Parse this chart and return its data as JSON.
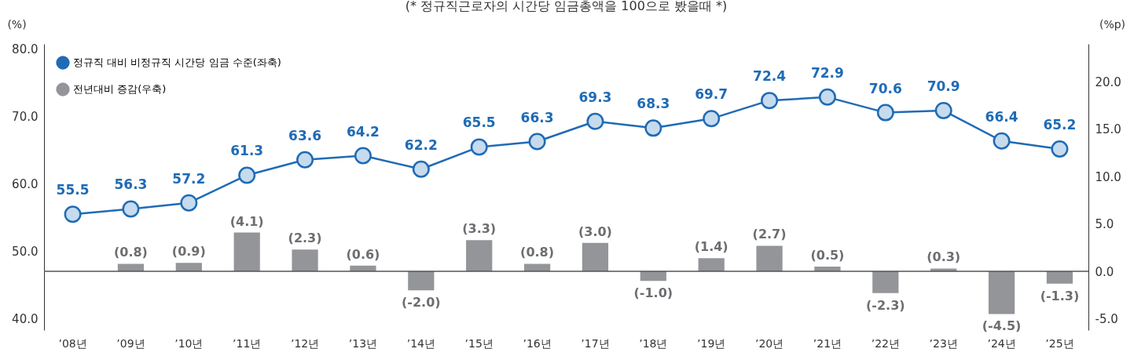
{
  "chart_data": {
    "type": "line",
    "title": "(* 정규직근로자의 시간당 임금총액을 100으로 봤을때 *)",
    "ylabel": "(%)",
    "y2label": "(%p)",
    "categories": [
      "’08년",
      "’09년",
      "’10년",
      "’11년",
      "’12년",
      "’13년",
      "’14년",
      "’15년",
      "’16년",
      "’17년",
      "’18년",
      "’19년",
      "’20년",
      "’21년",
      "’22년",
      "’23년",
      "’24년",
      "’25년"
    ],
    "series": [
      {
        "name": "정규직 대비 비정규직 시간당 임금 수준(좌축)",
        "color": "#1f6bb5",
        "marker": "circle",
        "values": [
          55.5,
          56.3,
          57.2,
          61.3,
          63.6,
          64.2,
          62.2,
          65.5,
          66.3,
          69.3,
          68.3,
          69.7,
          72.4,
          72.9,
          70.6,
          70.9,
          66.4,
          65.2
        ],
        "value_labels": [
          "55.5",
          "56.3",
          "57.2",
          "61.3",
          "63.6",
          "64.2",
          "62.2",
          "65.5",
          "66.3",
          "69.3",
          "68.3",
          "69.7",
          "72.4",
          "72.9",
          "70.6",
          "70.9",
          "66.4",
          "65.2"
        ]
      },
      {
        "name": "전년대비 증감(우축)",
        "type": "bar",
        "axis": "y2",
        "color": "#939598",
        "values": [
          null,
          0.8,
          0.9,
          4.1,
          2.3,
          0.6,
          -2.0,
          3.3,
          0.8,
          3.0,
          -1.0,
          1.4,
          2.7,
          0.5,
          -2.3,
          0.3,
          -4.5,
          -1.3
        ],
        "value_labels": [
          null,
          "(0.8)",
          "(0.9)",
          "(4.1)",
          "(2.3)",
          "(0.6)",
          "(-2.0)",
          "(3.3)",
          "(0.8)",
          "(3.0)",
          "(-1.0)",
          "(1.4)",
          "(2.7)",
          "(0.5)",
          "(-2.3)",
          "(0.3)",
          "(-4.5)",
          "(-1.3)"
        ]
      }
    ],
    "ylim": [
      38.3,
      80.8
    ],
    "yticks": [
      {
        "value": 40,
        "label": "40.0"
      },
      {
        "value": 50,
        "label": "50.0"
      },
      {
        "value": 60,
        "label": "60.0"
      },
      {
        "value": 70,
        "label": "70.0"
      },
      {
        "value": 80,
        "label": "80.0"
      }
    ],
    "y2lim": [
      -6.2,
      24.0
    ],
    "y2ticks": [
      {
        "value": -5,
        "label": "-5.0"
      },
      {
        "value": 0,
        "label": "0.0"
      },
      {
        "value": 5,
        "label": "5.0"
      },
      {
        "value": 10,
        "label": "10.0"
      },
      {
        "value": 15,
        "label": "15.0"
      },
      {
        "value": 20,
        "label": "20.0"
      }
    ],
    "ref_lines": [
      {
        "axis": "y2",
        "value": 0,
        "color": "#555555"
      }
    ],
    "grid": false,
    "legend": "top left"
  }
}
